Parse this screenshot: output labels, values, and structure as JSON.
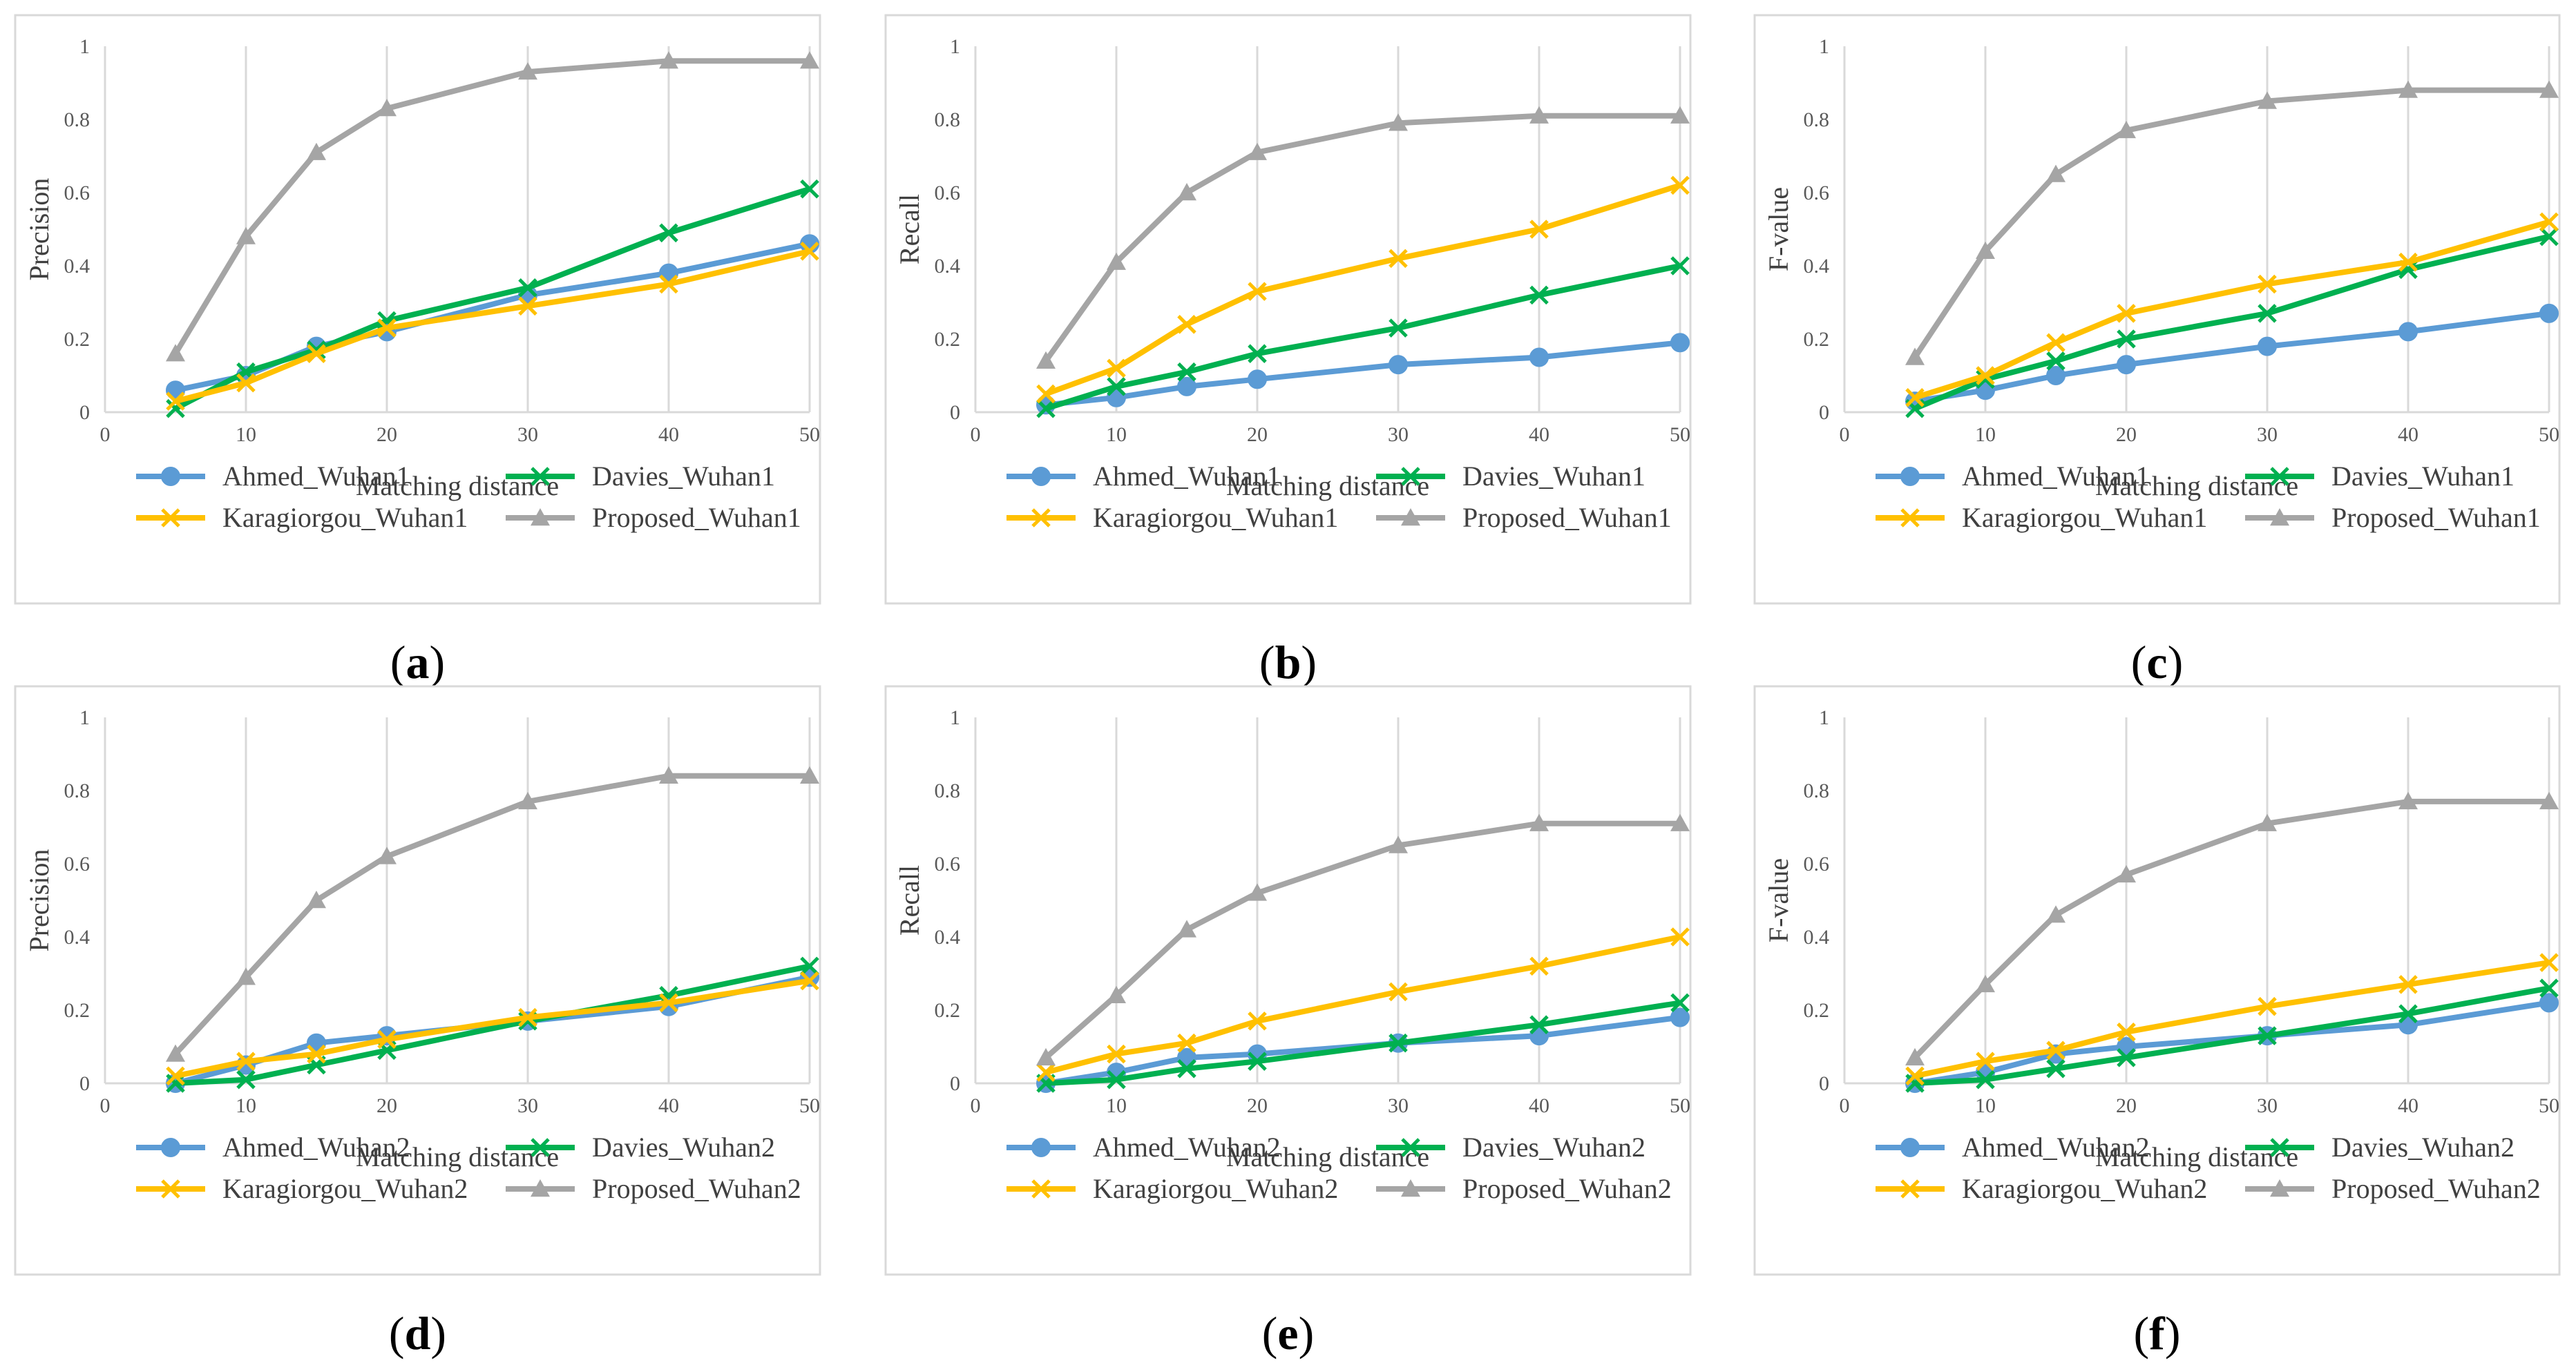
{
  "colors": {
    "ahmed": "#5B9BD5",
    "davies": "#00B050",
    "karagiorgou": "#FFC000",
    "proposed": "#A5A5A5"
  },
  "chart_data": [
    {
      "type": "line",
      "panel_letter": "a",
      "xlabel": "Matching distance",
      "ylabel": "Precision",
      "xlim": [
        0,
        50
      ],
      "ylim": [
        0,
        1
      ],
      "xticks": [
        "0",
        "10",
        "20",
        "30",
        "40",
        "50"
      ],
      "yticks": [
        "0",
        "0.2",
        "0.4",
        "0.6",
        "0.8",
        "1"
      ],
      "grid": "vertical",
      "legend": "bottom",
      "x": [
        5,
        10,
        15,
        20,
        30,
        40,
        50
      ],
      "series": [
        {
          "name": "Ahmed_Wuhan1",
          "color": "ahmed",
          "marker": "circle",
          "values": [
            0.06,
            0.1,
            0.18,
            0.22,
            0.32,
            0.38,
            0.46
          ]
        },
        {
          "name": "Davies_Wuhan1",
          "color": "davies",
          "marker": "x",
          "values": [
            0.01,
            0.11,
            0.17,
            0.25,
            0.34,
            0.49,
            0.61
          ]
        },
        {
          "name": "Karagiorgou_Wuhan1",
          "color": "karagiorgou",
          "marker": "x",
          "values": [
            0.03,
            0.08,
            0.16,
            0.23,
            0.29,
            0.35,
            0.44
          ]
        },
        {
          "name": "Proposed_Wuhan1",
          "color": "proposed",
          "marker": "triangle",
          "values": [
            0.16,
            0.48,
            0.71,
            0.83,
            0.93,
            0.96,
            0.96
          ]
        }
      ]
    },
    {
      "type": "line",
      "panel_letter": "b",
      "xlabel": "Matching distance",
      "ylabel": "Recall",
      "xlim": [
        0,
        50
      ],
      "ylim": [
        0,
        1
      ],
      "xticks": [
        "0",
        "10",
        "20",
        "30",
        "40",
        "50"
      ],
      "yticks": [
        "0",
        "0.2",
        "0.4",
        "0.6",
        "0.8",
        "1"
      ],
      "grid": "vertical",
      "legend": "bottom",
      "x": [
        5,
        10,
        15,
        20,
        30,
        40,
        50
      ],
      "series": [
        {
          "name": "Ahmed_Wuhan1",
          "color": "ahmed",
          "marker": "circle",
          "values": [
            0.02,
            0.04,
            0.07,
            0.09,
            0.13,
            0.15,
            0.19
          ]
        },
        {
          "name": "Davies_Wuhan1",
          "color": "davies",
          "marker": "x",
          "values": [
            0.01,
            0.07,
            0.11,
            0.16,
            0.23,
            0.32,
            0.4
          ]
        },
        {
          "name": "Karagiorgou_Wuhan1",
          "color": "karagiorgou",
          "marker": "x",
          "values": [
            0.05,
            0.12,
            0.24,
            0.33,
            0.42,
            0.5,
            0.62
          ]
        },
        {
          "name": "Proposed_Wuhan1",
          "color": "proposed",
          "marker": "triangle",
          "values": [
            0.14,
            0.41,
            0.6,
            0.71,
            0.79,
            0.81,
            0.81
          ]
        }
      ]
    },
    {
      "type": "line",
      "panel_letter": "c",
      "xlabel": "Matching distance",
      "ylabel": "F-value",
      "xlim": [
        0,
        50
      ],
      "ylim": [
        0,
        1
      ],
      "xticks": [
        "0",
        "10",
        "20",
        "30",
        "40",
        "50"
      ],
      "yticks": [
        "0",
        "0.2",
        "0.4",
        "0.6",
        "0.8",
        "1"
      ],
      "grid": "vertical",
      "legend": "bottom",
      "x": [
        5,
        10,
        15,
        20,
        30,
        40,
        50
      ],
      "series": [
        {
          "name": "Ahmed_Wuhan1",
          "color": "ahmed",
          "marker": "circle",
          "values": [
            0.03,
            0.06,
            0.1,
            0.13,
            0.18,
            0.22,
            0.27
          ]
        },
        {
          "name": "Davies_Wuhan1",
          "color": "davies",
          "marker": "x",
          "values": [
            0.01,
            0.09,
            0.14,
            0.2,
            0.27,
            0.39,
            0.48
          ]
        },
        {
          "name": "Karagiorgou_Wuhan1",
          "color": "karagiorgou",
          "marker": "x",
          "values": [
            0.04,
            0.1,
            0.19,
            0.27,
            0.35,
            0.41,
            0.52
          ]
        },
        {
          "name": "Proposed_Wuhan1",
          "color": "proposed",
          "marker": "triangle",
          "values": [
            0.15,
            0.44,
            0.65,
            0.77,
            0.85,
            0.88,
            0.88
          ]
        }
      ]
    },
    {
      "type": "line",
      "panel_letter": "d",
      "xlabel": "Matching distance",
      "ylabel": "Precision",
      "xlim": [
        0,
        50
      ],
      "ylim": [
        0,
        1
      ],
      "xticks": [
        "0",
        "10",
        "20",
        "30",
        "40",
        "50"
      ],
      "yticks": [
        "0",
        "0.2",
        "0.4",
        "0.6",
        "0.8",
        "1"
      ],
      "grid": "vertical",
      "legend": "bottom",
      "x": [
        5,
        10,
        15,
        20,
        30,
        40,
        50
      ],
      "series": [
        {
          "name": "Ahmed_Wuhan2",
          "color": "ahmed",
          "marker": "circle",
          "values": [
            0.0,
            0.05,
            0.11,
            0.13,
            0.17,
            0.21,
            0.29
          ]
        },
        {
          "name": "Davies_Wuhan2",
          "color": "davies",
          "marker": "x",
          "values": [
            0.0,
            0.01,
            0.05,
            0.09,
            0.17,
            0.24,
            0.32
          ]
        },
        {
          "name": "Karagiorgou_Wuhan2",
          "color": "karagiorgou",
          "marker": "x",
          "values": [
            0.02,
            0.06,
            0.08,
            0.12,
            0.18,
            0.22,
            0.28
          ]
        },
        {
          "name": "Proposed_Wuhan2",
          "color": "proposed",
          "marker": "triangle",
          "values": [
            0.08,
            0.29,
            0.5,
            0.62,
            0.77,
            0.84,
            0.84
          ]
        }
      ]
    },
    {
      "type": "line",
      "panel_letter": "e",
      "xlabel": "Matching distance",
      "ylabel": "Recall",
      "xlim": [
        0,
        50
      ],
      "ylim": [
        0,
        1
      ],
      "xticks": [
        "0",
        "10",
        "20",
        "30",
        "40",
        "50"
      ],
      "yticks": [
        "0",
        "0.2",
        "0.4",
        "0.6",
        "0.8",
        "1"
      ],
      "grid": "vertical",
      "legend": "bottom",
      "x": [
        5,
        10,
        15,
        20,
        30,
        40,
        50
      ],
      "series": [
        {
          "name": "Ahmed_Wuhan2",
          "color": "ahmed",
          "marker": "circle",
          "values": [
            0.0,
            0.03,
            0.07,
            0.08,
            0.11,
            0.13,
            0.18
          ]
        },
        {
          "name": "Davies_Wuhan2",
          "color": "davies",
          "marker": "x",
          "values": [
            0.0,
            0.01,
            0.04,
            0.06,
            0.11,
            0.16,
            0.22
          ]
        },
        {
          "name": "Karagiorgou_Wuhan2",
          "color": "karagiorgou",
          "marker": "x",
          "values": [
            0.03,
            0.08,
            0.11,
            0.17,
            0.25,
            0.32,
            0.4
          ]
        },
        {
          "name": "Proposed_Wuhan2",
          "color": "proposed",
          "marker": "triangle",
          "values": [
            0.07,
            0.24,
            0.42,
            0.52,
            0.65,
            0.71,
            0.71
          ]
        }
      ]
    },
    {
      "type": "line",
      "panel_letter": "f",
      "xlabel": "Matching distance",
      "ylabel": "F-value",
      "xlim": [
        0,
        50
      ],
      "ylim": [
        0,
        1
      ],
      "xticks": [
        "0",
        "10",
        "20",
        "30",
        "40",
        "50"
      ],
      "yticks": [
        "0",
        "0.2",
        "0.4",
        "0.6",
        "0.8",
        "1"
      ],
      "grid": "vertical",
      "legend": "bottom",
      "x": [
        5,
        10,
        15,
        20,
        30,
        40,
        50
      ],
      "series": [
        {
          "name": "Ahmed_Wuhan2",
          "color": "ahmed",
          "marker": "circle",
          "values": [
            0.0,
            0.03,
            0.08,
            0.1,
            0.13,
            0.16,
            0.22
          ]
        },
        {
          "name": "Davies_Wuhan2",
          "color": "davies",
          "marker": "x",
          "values": [
            0.0,
            0.01,
            0.04,
            0.07,
            0.13,
            0.19,
            0.26
          ]
        },
        {
          "name": "Karagiorgou_Wuhan2",
          "color": "karagiorgou",
          "marker": "x",
          "values": [
            0.02,
            0.06,
            0.09,
            0.14,
            0.21,
            0.27,
            0.33
          ]
        },
        {
          "name": "Proposed_Wuhan2",
          "color": "proposed",
          "marker": "triangle",
          "values": [
            0.07,
            0.27,
            0.46,
            0.57,
            0.71,
            0.77,
            0.77
          ]
        }
      ]
    }
  ]
}
